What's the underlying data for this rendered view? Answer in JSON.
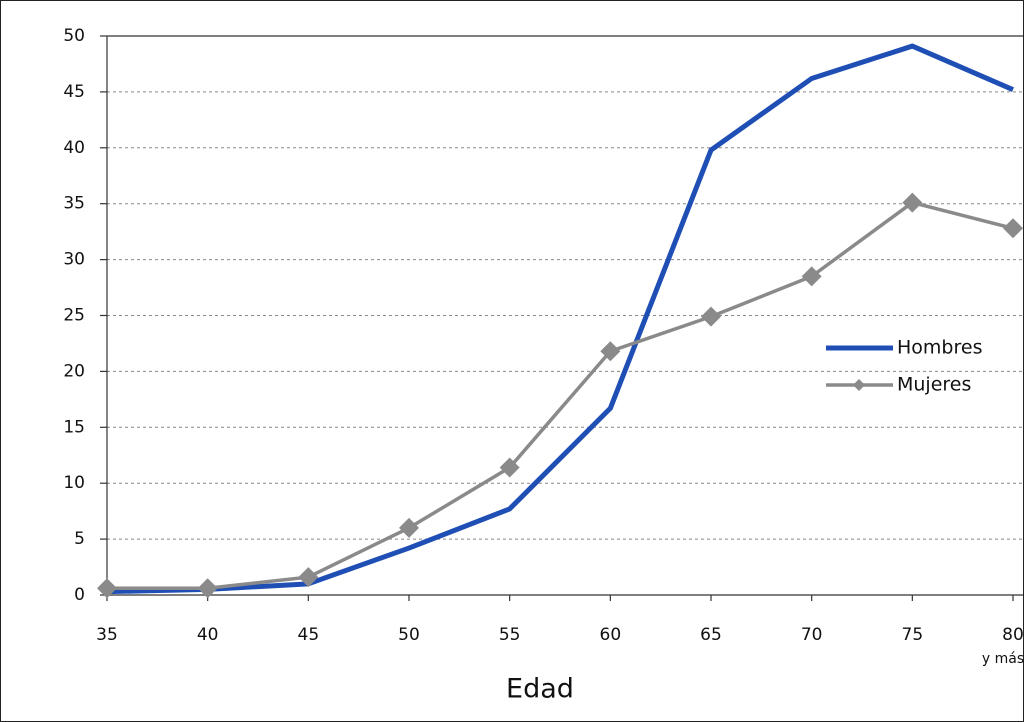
{
  "chart_data": {
    "type": "line",
    "x_label": "Edad",
    "categories": [
      "35",
      "40",
      "45",
      "50",
      "55",
      "60",
      "65",
      "70",
      "75",
      "80"
    ],
    "category_note": "y más",
    "series": [
      {
        "name": "Hombres",
        "color": "#1f4fb5",
        "values": [
          0.3,
          0.5,
          1.0,
          4.2,
          7.7,
          16.7,
          39.8,
          46.2,
          49.1,
          45.2
        ]
      },
      {
        "name": "Mujeres",
        "color": "#8a8a8a",
        "marker": "diamond",
        "values": [
          0.6,
          0.6,
          1.6,
          6.0,
          11.4,
          21.8,
          24.9,
          28.5,
          35.1,
          32.8
        ]
      }
    ],
    "ylim": [
      0,
      50
    ],
    "yticks": [
      0,
      5,
      10,
      15,
      20,
      25,
      30,
      35,
      40,
      45,
      50
    ],
    "grid": true,
    "legend": "right"
  }
}
